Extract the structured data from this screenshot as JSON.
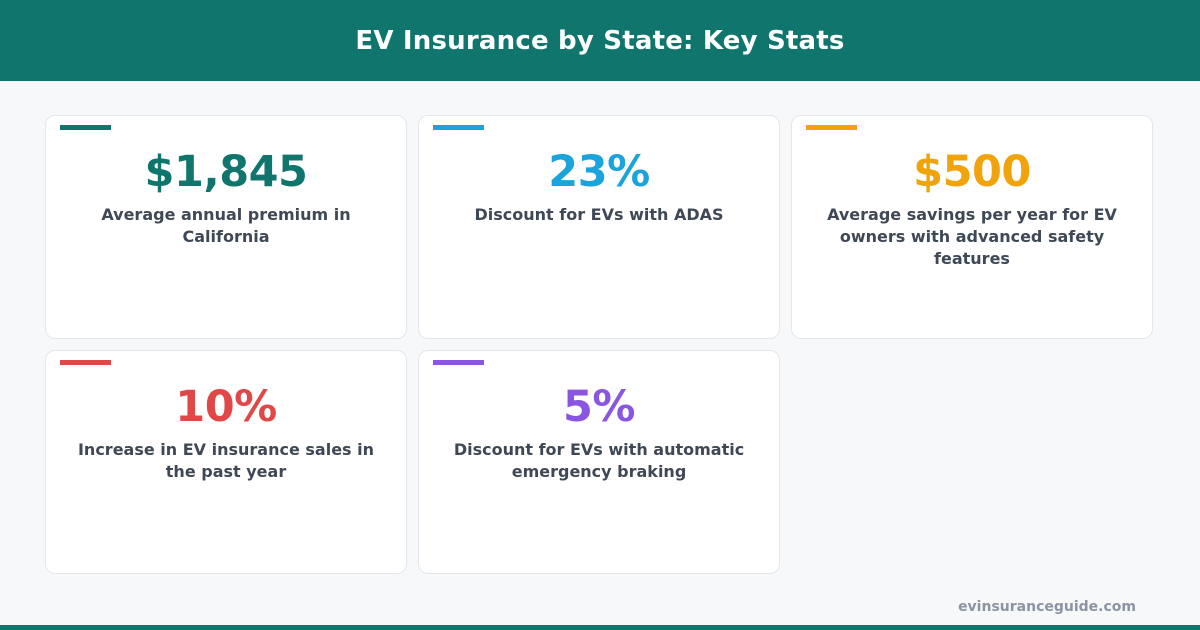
{
  "header": {
    "title": "EV Insurance by State: Key Stats"
  },
  "stats": [
    {
      "value": "$1,845",
      "description": "Average annual premium in California",
      "color": "#10766d"
    },
    {
      "value": "23%",
      "description": "Discount for EVs with ADAS",
      "color": "#1ba3dc"
    },
    {
      "value": "$500",
      "description": "Average savings per year for EV owners with advanced safety features",
      "color": "#f0a30a"
    },
    {
      "value": "10%",
      "description": "Increase in EV insurance sales in the past year",
      "color": "#e04848"
    },
    {
      "value": "5%",
      "description": "Discount for EVs with automatic emergency braking",
      "color": "#8a55e0"
    }
  ],
  "footer": {
    "site": "evinsuranceguide.com"
  },
  "theme": {
    "brand": "#10766d",
    "background": "#f7f8fa"
  }
}
